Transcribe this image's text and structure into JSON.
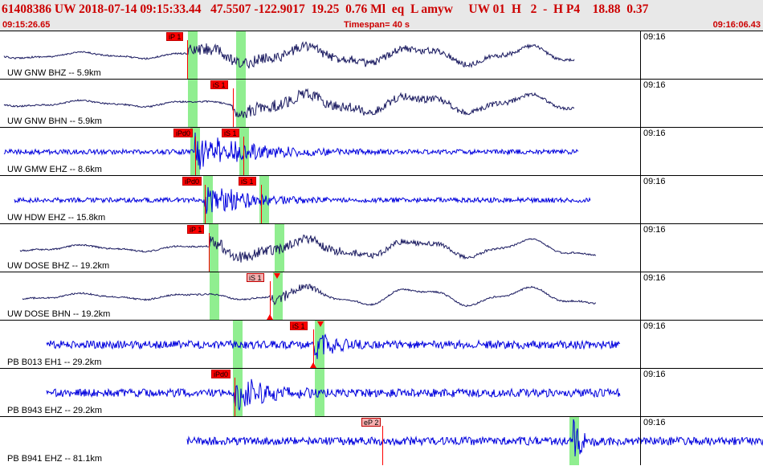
{
  "header": {
    "title": "61408386 UW 2018-07-14 09:15:33.44   47.5507 -122.9017  19.25  0.76 Ml  eq  L amyw     UW 01  H   2  -  H P4    18.88  0.37",
    "start_time": "09:15:26.65",
    "timespan": "Timespan=  40 s",
    "end_time": "09:16:06.43"
  },
  "minute_label": "09:16",
  "colors": {
    "header_text": "#cc0000",
    "trace_dark": "#1a1a60",
    "trace_blue": "#0000dd",
    "pick_window": "#90ee90",
    "pick": "#ff0000"
  },
  "panels": [
    {
      "label": "UW GNW BHZ -- 5.9km",
      "style": "longperiod",
      "color": "#1a1a60",
      "picks": [
        {
          "tag": "iP 1",
          "kind": "red"
        }
      ]
    },
    {
      "label": "UW GNW BHN -- 5.9km",
      "style": "longperiod",
      "color": "#1a1a60",
      "picks": [
        {
          "tag": "iS 1",
          "kind": "red"
        }
      ]
    },
    {
      "label": "UW GMW EHZ -- 8.6km",
      "style": "highfreq",
      "color": "#0000dd",
      "picks": [
        {
          "tag": "iPd0",
          "kind": "red"
        },
        {
          "tag": "iS 1",
          "kind": "red"
        }
      ]
    },
    {
      "label": "UW HDW EHZ -- 15.8km",
      "style": "highfreq",
      "color": "#0000dd",
      "picks": [
        {
          "tag": "iPd0",
          "kind": "red"
        },
        {
          "tag": "iS 1",
          "kind": "red"
        }
      ]
    },
    {
      "label": "UW DOSE BHZ -- 19.2km",
      "style": "longperiod",
      "color": "#1a1a60",
      "picks": [
        {
          "tag": "iP 1",
          "kind": "red"
        }
      ]
    },
    {
      "label": "UW DOSE BHN -- 19.2km",
      "style": "longperiod",
      "color": "#1a1a60",
      "picks": [
        {
          "tag": "iS 1",
          "kind": "pink"
        }
      ]
    },
    {
      "label": "PB B013 EH1 -- 29.2km",
      "style": "noisy",
      "color": "#0000dd",
      "picks": [
        {
          "tag": "iS 1",
          "kind": "red"
        }
      ]
    },
    {
      "label": "PB B943 EHZ -- 29.2km",
      "style": "noisy",
      "color": "#0000dd",
      "picks": [
        {
          "tag": "iPd0",
          "kind": "red"
        }
      ]
    },
    {
      "label": "PB B941 EHZ -- 81.1km",
      "style": "noisy",
      "color": "#0000dd",
      "picks": [
        {
          "tag": "eP 2",
          "kind": "pink"
        }
      ]
    }
  ]
}
